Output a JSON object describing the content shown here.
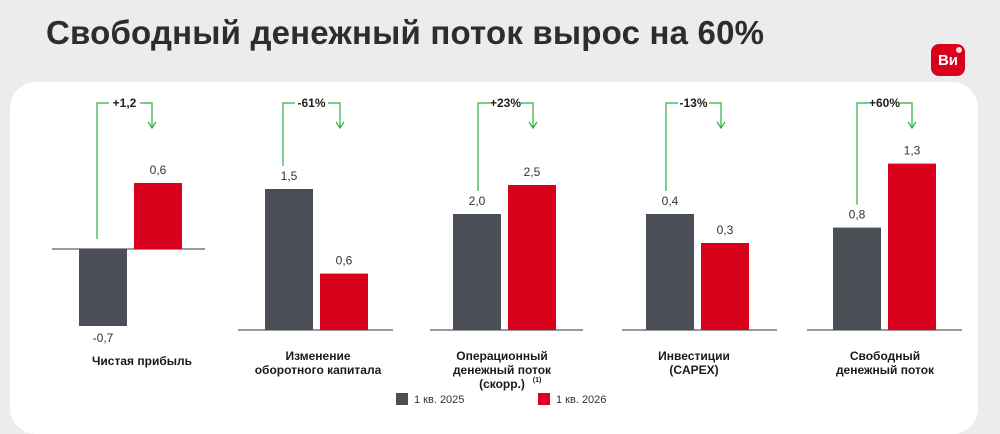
{
  "title": "Свободный денежный поток вырос на 60%",
  "logo_text": "Ви",
  "colors": {
    "prev": "#4a4f55",
    "curr": "#d9001b",
    "arrow": "#2fae3f"
  },
  "chart_data": {
    "type": "bar",
    "series": [
      {
        "name": "1 кв. 2025",
        "values": [
          -0.7,
          1.5,
          2.0,
          0.4,
          0.8
        ],
        "labels": [
          "-0,7",
          "1,5",
          "2,0",
          "0,4",
          "0,8"
        ]
      },
      {
        "name": "1 кв. 2026",
        "values": [
          0.6,
          0.6,
          2.5,
          0.3,
          1.3
        ],
        "labels": [
          "0,6",
          "0,6",
          "2,5",
          "0,3",
          "1,3"
        ]
      }
    ],
    "groups": [
      {
        "category": [
          "Чистая прибыль"
        ],
        "change": "+1,2",
        "footnote": ""
      },
      {
        "category": [
          "Изменение",
          "оборотного капитала"
        ],
        "change": "-61%",
        "footnote": ""
      },
      {
        "category": [
          "Операционный",
          "денежный поток",
          "(скорр.)"
        ],
        "change": "+23%",
        "footnote": "(1)"
      },
      {
        "category": [
          "Инвестиции",
          "(CAPEX)"
        ],
        "change": "-13%",
        "footnote": ""
      },
      {
        "category": [
          "Свободный",
          "денежный поток"
        ],
        "change": "+60%",
        "footnote": ""
      }
    ],
    "legend_position": "bottom-center",
    "grid": false
  }
}
